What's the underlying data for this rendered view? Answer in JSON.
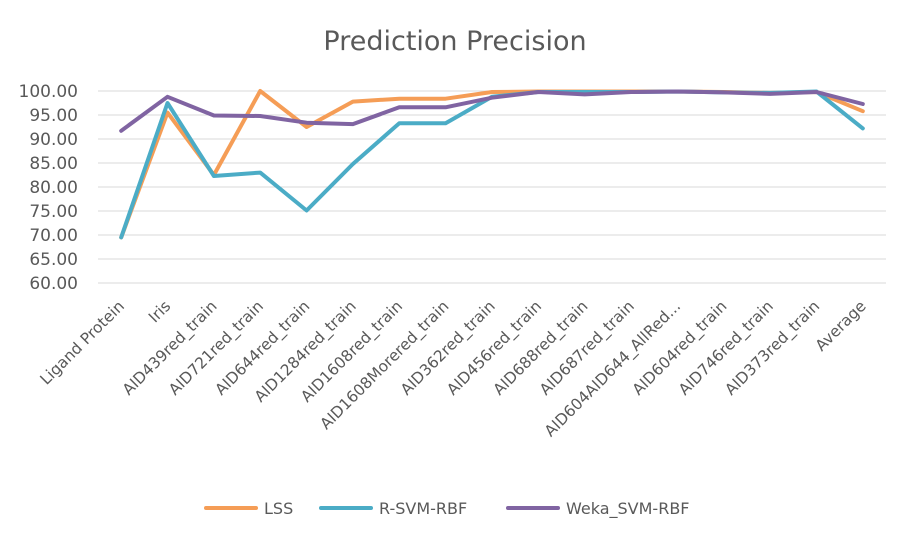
{
  "chart_data": {
    "type": "line",
    "title": "Prediction Precision",
    "xlabel": "",
    "ylabel": "",
    "ylim": [
      60,
      100
    ],
    "yticks": [
      "60.00",
      "65.00",
      "70.00",
      "75.00",
      "80.00",
      "85.00",
      "90.00",
      "95.00",
      "100.00"
    ],
    "grid": true,
    "legend": "bottom",
    "categories": [
      "Ligand Protein",
      "Iris",
      "AID439red_train",
      "AID721red_train",
      "AID644red_train",
      "AID1284red_train",
      "AID1608red_train",
      "AID1608Morered_train",
      "AID362red_train",
      "AID456red_train",
      "AID688red_train",
      "AID687red_train",
      "AID604AID644_AllRed...",
      "AID604red_train",
      "AID746red_train",
      "AID373red_train",
      "Average"
    ],
    "series": [
      {
        "name": "LSS",
        "color": "#f59d56",
        "values": [
          69.5,
          95.5,
          82.5,
          100.0,
          92.5,
          97.8,
          98.4,
          98.4,
          99.8,
          99.9,
          99.9,
          99.9,
          99.9,
          99.8,
          99.6,
          99.8,
          95.8
        ]
      },
      {
        "name": "R-SVM-RBF",
        "color": "#4bacc6",
        "values": [
          69.5,
          97.5,
          82.3,
          83.0,
          75.1,
          84.8,
          93.3,
          93.3,
          98.8,
          99.8,
          99.8,
          99.8,
          99.9,
          99.7,
          99.6,
          99.9,
          92.2
        ]
      },
      {
        "name": "Weka_SVM-RBF",
        "color": "#8064a2",
        "values": [
          91.7,
          98.8,
          94.9,
          94.8,
          93.4,
          93.1,
          96.6,
          96.6,
          98.6,
          99.8,
          99.3,
          99.8,
          99.9,
          99.7,
          99.4,
          99.8,
          97.3
        ]
      }
    ]
  }
}
